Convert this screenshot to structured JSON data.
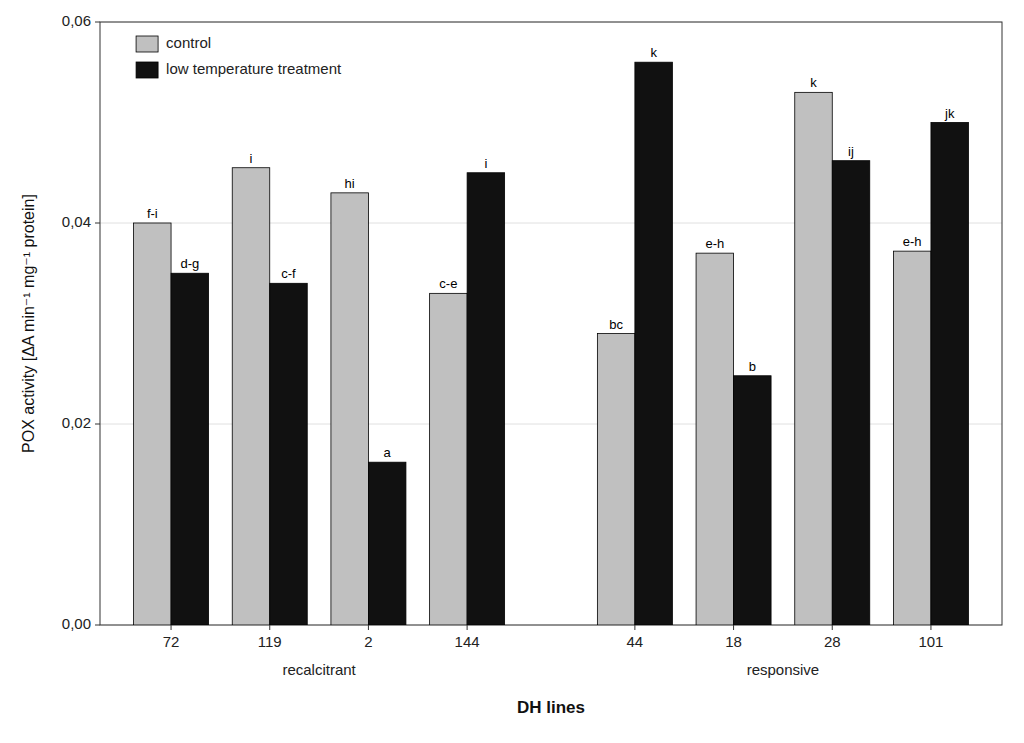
{
  "chart_data": {
    "type": "bar",
    "xlabel": "DH lines",
    "ylabel": "POX activity [ΔA min⁻¹ mg⁻¹ protein]",
    "categories": [
      "72",
      "119",
      "2",
      "144",
      "44",
      "18",
      "28",
      "101"
    ],
    "category_groups": [
      "recalcitrant",
      "recalcitrant",
      "recalcitrant",
      "recalcitrant",
      "responsive",
      "responsive",
      "responsive",
      "responsive"
    ],
    "series": [
      {
        "name": "control",
        "color": "#c0c0c0",
        "values": [
          0.04,
          0.0455,
          0.043,
          0.033,
          0.029,
          0.037,
          0.053,
          0.0372
        ],
        "letters": [
          "f-i",
          "i",
          "hi",
          "c-e",
          "bc",
          "e-h",
          "k",
          "e-h"
        ]
      },
      {
        "name": "low temperature treatment",
        "color": "#111111",
        "values": [
          0.035,
          0.034,
          0.0162,
          0.045,
          0.056,
          0.0248,
          0.0462,
          0.05
        ],
        "letters": [
          "d-g",
          "c-f",
          "a",
          "i",
          "k",
          "b",
          "ij",
          "jk"
        ]
      }
    ],
    "ylim": [
      0,
      0.06
    ],
    "yticks": [
      {
        "value": 0,
        "label": "0,00"
      },
      {
        "value": 0.02,
        "label": "0,02"
      },
      {
        "value": 0.04,
        "label": "0,04"
      },
      {
        "value": 0.06,
        "label": "0,06"
      }
    ],
    "grid": true,
    "legend": "upper left"
  }
}
